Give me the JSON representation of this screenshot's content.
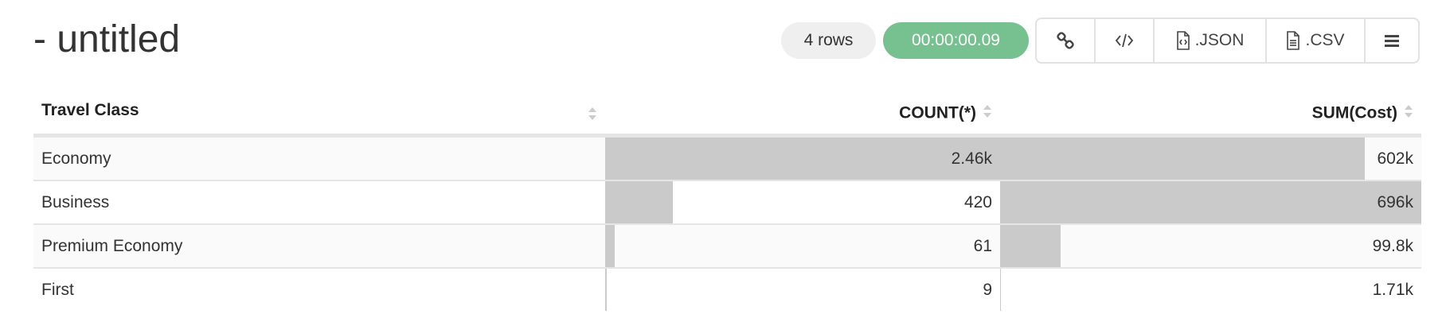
{
  "header": {
    "title": "- untitled",
    "row_count": "4 rows",
    "elapsed": "00:00:00.09"
  },
  "toolbar": {
    "json_label": ".JSON",
    "csv_label": ".CSV",
    "icons": [
      "link-icon",
      "code-icon",
      "json-file-icon",
      "csv-file-icon",
      "menu-icon"
    ]
  },
  "colors": {
    "timer_bg": "#77c08f",
    "bar": "#cacaca"
  },
  "table": {
    "columns": [
      "Travel Class",
      "COUNT(*)",
      "SUM(Cost)"
    ],
    "rows": [
      {
        "cls": "Economy",
        "count": "2.46k",
        "sum": "602k",
        "count_frac": 1.0,
        "sum_frac": 0.865
      },
      {
        "cls": "Business",
        "count": "420",
        "sum": "696k",
        "count_frac": 0.171,
        "sum_frac": 1.0
      },
      {
        "cls": "Premium Economy",
        "count": "61",
        "sum": "99.8k",
        "count_frac": 0.025,
        "sum_frac": 0.143
      },
      {
        "cls": "First",
        "count": "9",
        "sum": "1.71k",
        "count_frac": 0.004,
        "sum_frac": 0.0025
      }
    ]
  }
}
